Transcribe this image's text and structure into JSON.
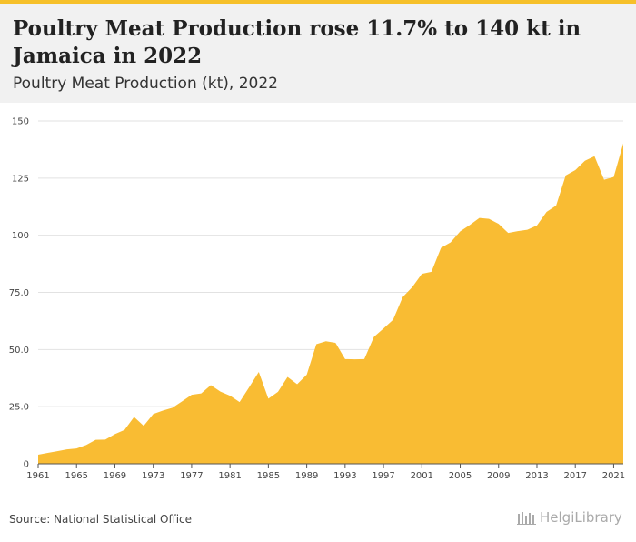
{
  "header": {
    "title": "Poultry Meat Production rose 11.7% to 140 kt in Jamaica in 2022",
    "subtitle": "Poultry Meat Production (kt), 2022"
  },
  "footer": {
    "source": "Source: National Statistical Office",
    "logo_text": "HelgiLibrary"
  },
  "colors": {
    "accent": "#f6c02a",
    "area_fill": "#f9bc33",
    "grid": "#e2e2e2",
    "header_bg": "#f1f1f1"
  },
  "chart_data": {
    "type": "area",
    "title": "Poultry Meat Production rose 11.7% to 140 kt in Jamaica in 2022",
    "subtitle": "Poultry Meat Production (kt), 2022",
    "xlabel": "",
    "ylabel": "",
    "grid": true,
    "legend": "none",
    "xlim": [
      1961,
      2022
    ],
    "ylim": [
      0,
      150
    ],
    "x_ticks": [
      1961,
      1965,
      1969,
      1973,
      1977,
      1981,
      1985,
      1989,
      1993,
      1997,
      2001,
      2005,
      2009,
      2013,
      2017,
      2021
    ],
    "y_ticks": [
      0,
      25,
      50,
      75,
      100,
      125,
      150
    ],
    "y_tick_labels": [
      "0",
      "25.0",
      "50.0",
      "75.0",
      "100",
      "125",
      "150"
    ],
    "series": [
      {
        "name": "Poultry Meat Production",
        "x": [
          1961,
          1962,
          1963,
          1964,
          1965,
          1966,
          1967,
          1968,
          1969,
          1970,
          1971,
          1972,
          1973,
          1974,
          1975,
          1976,
          1977,
          1978,
          1979,
          1980,
          1981,
          1982,
          1983,
          1984,
          1985,
          1986,
          1987,
          1988,
          1989,
          1990,
          1991,
          1992,
          1993,
          1994,
          1995,
          1996,
          1997,
          1998,
          1999,
          2000,
          2001,
          2002,
          2003,
          2004,
          2005,
          2006,
          2007,
          2008,
          2009,
          2010,
          2011,
          2012,
          2013,
          2014,
          2015,
          2016,
          2017,
          2018,
          2019,
          2020,
          2021,
          2022
        ],
        "values": [
          4,
          4.8,
          5.5,
          6.3,
          6.7,
          8.2,
          10.5,
          10.6,
          13,
          14.8,
          20.5,
          16.6,
          21.8,
          23.3,
          24.5,
          27.3,
          30.2,
          30.8,
          34.4,
          31.6,
          29.8,
          27,
          33.5,
          40.2,
          28.5,
          31.5,
          38,
          34.8,
          39,
          52.3,
          53.6,
          52.9,
          45.8,
          45.7,
          45.8,
          55.5,
          59.2,
          63,
          72.9,
          77.3,
          83.1,
          84,
          94.5,
          96.9,
          101.7,
          104.5,
          107.6,
          107.2,
          105,
          101,
          101.8,
          102.4,
          104.3,
          110.2,
          113,
          126.2,
          128.5,
          132.6,
          134.6,
          124.3,
          125.5,
          140.2
        ]
      }
    ]
  }
}
